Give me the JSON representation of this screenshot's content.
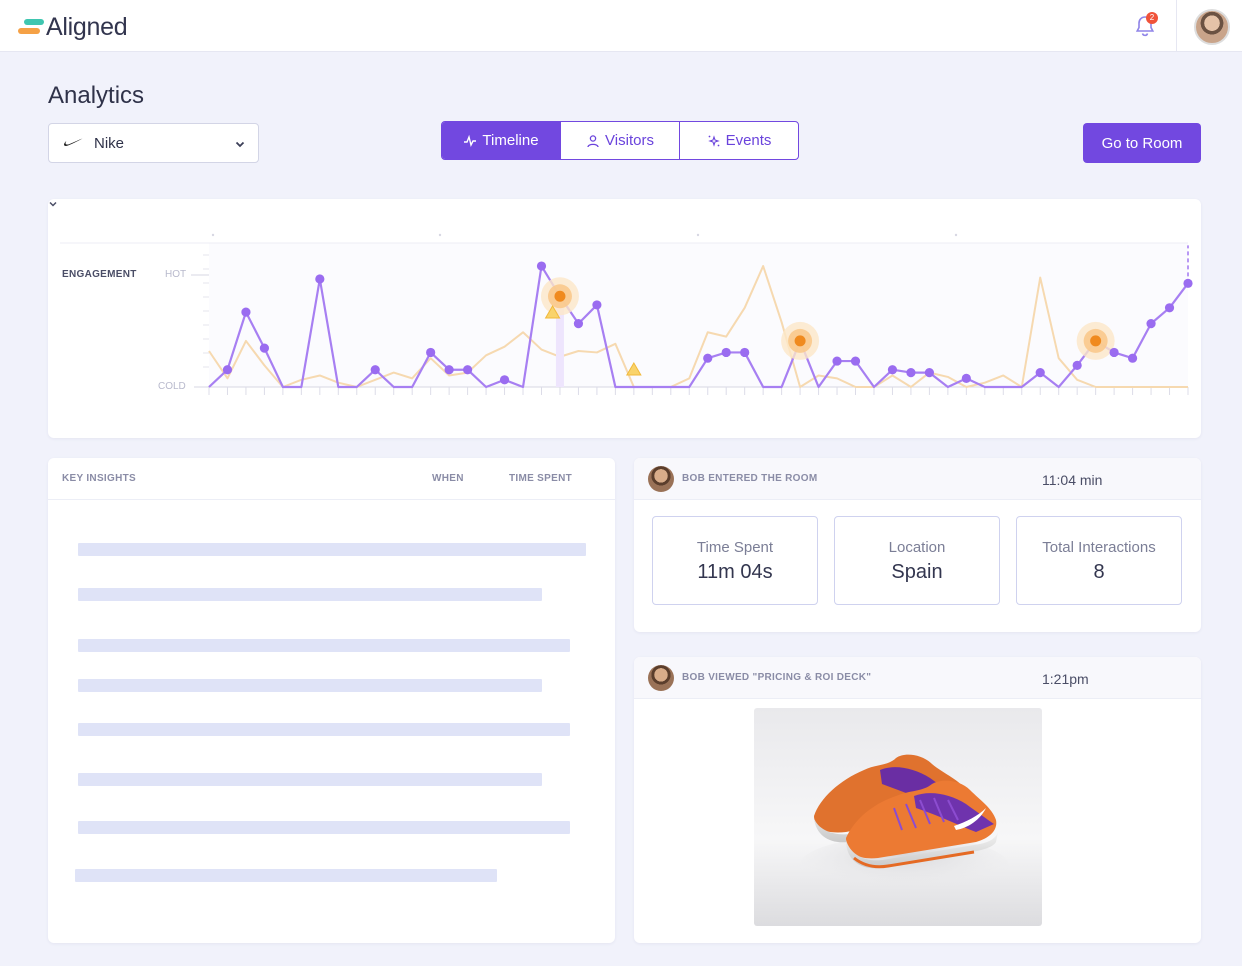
{
  "app": {
    "logo_text": "Aligned",
    "notification_count": "2",
    "brand_colors": {
      "accent": "#7248e0",
      "logo_teal": "#3fc6b0",
      "logo_orange": "#f5a146"
    }
  },
  "page": {
    "title": "Analytics",
    "brand_select": {
      "value": "Nike",
      "icon": "nike-swoosh-icon"
    },
    "tabs": [
      {
        "label": "Timeline",
        "icon": "pulse-icon",
        "active": true
      },
      {
        "label": "Visitors",
        "icon": "user-icon",
        "active": false
      },
      {
        "label": "Events",
        "icon": "sparkle-icon",
        "active": false
      }
    ],
    "go_to_room_label": "Go to Room"
  },
  "chart_data": {
    "type": "line",
    "ylabel": "ENGAGEMENT",
    "y_scale_labels": {
      "top": "HOT",
      "bottom": "COLD"
    },
    "ylim": [
      0,
      100
    ],
    "x": [
      0,
      1,
      2,
      3,
      4,
      5,
      6,
      7,
      8,
      9,
      10,
      11,
      12,
      13,
      14,
      15,
      16,
      17,
      18,
      19,
      20,
      21,
      22,
      23,
      24,
      25,
      26,
      27,
      28,
      29,
      30,
      31,
      32,
      33,
      34,
      35,
      36,
      37,
      38,
      39,
      40,
      41,
      42,
      43,
      44,
      45,
      46,
      47,
      48,
      49,
      50,
      51,
      52,
      53
    ],
    "series": [
      {
        "color": "#a77ff2",
        "values": [
          0,
          12,
          52,
          27,
          0,
          0,
          75,
          0,
          0,
          12,
          0,
          0,
          24,
          12,
          12,
          0,
          5,
          0,
          84,
          63,
          44,
          57,
          0,
          0,
          0,
          0,
          0,
          20,
          24,
          24,
          0,
          0,
          32,
          0,
          18,
          18,
          0,
          12,
          10,
          10,
          0,
          6,
          0,
          0,
          0,
          10,
          0,
          15,
          32,
          24,
          20,
          44,
          55,
          72
        ],
        "highlights": [
          {
            "x": 19,
            "kind": "hot-pulse"
          },
          {
            "x": 32,
            "kind": "hot-pulse"
          },
          {
            "x": 48,
            "kind": "hot-pulse"
          }
        ]
      },
      {
        "color": "#f6d9b0",
        "values": [
          25,
          6,
          32,
          15,
          0,
          5,
          8,
          3,
          0,
          5,
          10,
          6,
          20,
          8,
          10,
          22,
          28,
          38,
          26,
          21,
          25,
          24,
          30,
          0,
          0,
          0,
          6,
          38,
          35,
          55,
          84,
          45,
          0,
          8,
          6,
          0,
          0,
          8,
          0,
          10,
          7,
          0,
          3,
          8,
          0,
          76,
          20,
          5,
          0,
          0,
          0,
          0,
          0,
          0
        ]
      }
    ],
    "warnings": [
      {
        "x": 18.6
      },
      {
        "x": 23
      }
    ],
    "grid": true
  },
  "insights": {
    "headers": {
      "key_insights": "KEY INSIGHTS",
      "when": "WHEN",
      "time_spent": "TIME SPENT"
    }
  },
  "room_event": {
    "title": "BOB ENTERED THE ROOM",
    "time": "11:04 min",
    "stats": [
      {
        "label": "Time Spent",
        "value": "11m 04s"
      },
      {
        "label": "Location",
        "value": "Spain"
      },
      {
        "label": "Total Interactions",
        "value": "8"
      }
    ]
  },
  "viewed_event": {
    "title": "BOB VIEWED \"PRICING & ROI DECK\"",
    "time": "1:21pm",
    "image": "orange-purple-running-shoe-photo"
  }
}
